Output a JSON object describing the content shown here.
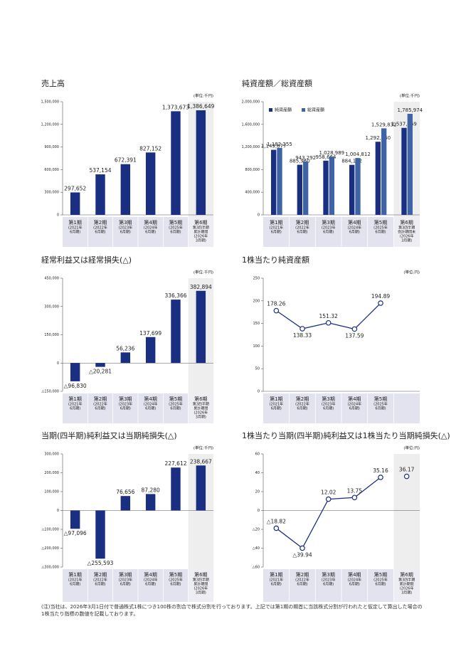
{
  "chart_data": [
    {
      "type": "bar",
      "title": "売上高",
      "unit": "(単位:千円)",
      "color": "#1b2f82",
      "highlight_last": true,
      "categories": [
        [
          "第1期",
          "(2021年",
          "6月期)"
        ],
        [
          "第2期",
          "(2022年",
          "6月期)"
        ],
        [
          "第3期",
          "(2023年",
          "6月期)"
        ],
        [
          "第4期",
          "(2024年",
          "6月期)"
        ],
        [
          "第5期",
          "(2025年",
          "6月期)"
        ],
        [
          "第6期",
          "第3四半期",
          "累計期間",
          "(2026年",
          "3月期)"
        ]
      ],
      "values": [
        297652,
        537154,
        672391,
        827152,
        1373673,
        1386649
      ],
      "value_labels": [
        "297,652",
        "537,154",
        "672,391",
        "827,152",
        "1,373,673",
        "1,386,649"
      ],
      "ylim": [
        0,
        1500000
      ],
      "yticks": [
        0,
        {
          "value": 300000,
          "label": "300,000"
        },
        {
          "value": 600000,
          "label": "600,000"
        },
        {
          "value": 900000,
          "label": "900,000"
        },
        {
          "value": 1200000,
          "label": "1,200,000"
        },
        {
          "value": 1500000,
          "label": "1,500,000"
        }
      ]
    },
    {
      "type": "bar",
      "title": "純資産額／総資産額",
      "unit": "(単位:千円)",
      "highlight_last": true,
      "legend": "upper left",
      "categories": [
        [
          "第1期",
          "(2021年",
          "6月期)"
        ],
        [
          "第2期",
          "(2022年",
          "6月期)"
        ],
        [
          "第3期",
          "(2023年",
          "6月期)"
        ],
        [
          "第4期",
          "(2024年",
          "6月期)"
        ],
        [
          "第5期",
          "(2025年",
          "6月期)"
        ],
        [
          "第6期",
          "第3四半期",
          "会計期間末",
          "(2026年",
          "3月期)"
        ]
      ],
      "series": [
        {
          "name": "純資産額",
          "color": "#1b2f82",
          "values": [
            1149677,
            885960,
            958664,
            884132,
            1292760,
            1537869
          ],
          "value_labels": [
            "1,149,677",
            "885,960",
            "958,664",
            "884,132",
            "1,292,760",
            "1,537,869"
          ]
        },
        {
          "name": "総資産額",
          "color": "#3e64a6",
          "values": [
            1182255,
            943292,
            1028989,
            1004812,
            1529832,
            1785974
          ],
          "value_labels": [
            "1,182,255",
            "943,292",
            "1,028,989",
            "1,004,812",
            "1,529,832",
            "1,785,974"
          ]
        }
      ],
      "ylim": [
        0,
        2000000
      ],
      "yticks": [
        0,
        {
          "value": 400000,
          "label": "400,000"
        },
        {
          "value": 800000,
          "label": "800,000"
        },
        {
          "value": 1200000,
          "label": "1,200,000"
        },
        {
          "value": 1600000,
          "label": "1,600,000"
        },
        {
          "value": 2000000,
          "label": "2,000,000"
        }
      ]
    },
    {
      "type": "bar",
      "title": "経常利益又は経常損失(△)",
      "unit": "(単位:千円)",
      "color": "#1b2f82",
      "highlight_last": true,
      "categories": [
        [
          "第1期",
          "(2021年",
          "6月期)"
        ],
        [
          "第2期",
          "(2022年",
          "6月期)"
        ],
        [
          "第3期",
          "(2023年",
          "6月期)"
        ],
        [
          "第4期",
          "(2024年",
          "6月期)"
        ],
        [
          "第5期",
          "(2025年",
          "6月期)"
        ],
        [
          "第6期",
          "第3四半期",
          "累計期間",
          "(2026年",
          "3月期)"
        ]
      ],
      "values": [
        -96830,
        -20281,
        56236,
        137699,
        336366,
        382894
      ],
      "value_labels": [
        "△96,830",
        "△20,281",
        "56,236",
        "137,699",
        "336,366",
        "382,894"
      ],
      "ylim": [
        -150000,
        450000
      ],
      "yticks": [
        {
          "value": -150000,
          "label": "△150,000"
        },
        0,
        {
          "value": 150000,
          "label": "150,000"
        },
        {
          "value": 300000,
          "label": "300,000"
        },
        {
          "value": 450000,
          "label": "450,000"
        }
      ]
    },
    {
      "type": "line",
      "title": "1株当たり純資産額",
      "unit": "(単位:円)",
      "color": "#1b2f82",
      "highlight_last": false,
      "categories": [
        [
          "第1期",
          "(2021年",
          "6月期)"
        ],
        [
          "第2期",
          "(2022年",
          "6月期)"
        ],
        [
          "第3期",
          "(2023年",
          "6月期)"
        ],
        [
          "第4期",
          "(2024年",
          "6月期)"
        ],
        [
          "第5期",
          "(2025年",
          "6月期)"
        ]
      ],
      "values": [
        178.26,
        138.33,
        151.32,
        137.59,
        194.89
      ],
      "ylim": [
        0,
        250
      ],
      "yticks": [
        0,
        50,
        100,
        150,
        200,
        250
      ]
    },
    {
      "type": "bar",
      "title": "当期(四半期)純利益又は当期純損失(△)",
      "unit": "(単位:千円)",
      "color": "#1b2f82",
      "highlight_last": true,
      "categories": [
        [
          "第1期",
          "(2021年",
          "6月期)"
        ],
        [
          "第2期",
          "(2022年",
          "6月期)"
        ],
        [
          "第3期",
          "(2023年",
          "6月期)"
        ],
        [
          "第4期",
          "(2024年",
          "6月期)"
        ],
        [
          "第5期",
          "(2025年",
          "6月期)"
        ],
        [
          "第6期",
          "第3四半期",
          "累計期間",
          "(2026年",
          "3月期)"
        ]
      ],
      "values": [
        -97096,
        -255593,
        76656,
        87280,
        227612,
        238667
      ],
      "value_labels": [
        "△97,096",
        "△255,593",
        "76,656",
        "87,280",
        "227,612",
        "238,667"
      ],
      "ylim": [
        -300000,
        300000
      ],
      "yticks": [
        {
          "value": -300000,
          "label": "△300,000"
        },
        {
          "value": -200000,
          "label": "△200,000"
        },
        {
          "value": -100000,
          "label": "△100,000"
        },
        0,
        {
          "value": 100000,
          "label": "100,000"
        },
        {
          "value": 200000,
          "label": "200,000"
        },
        {
          "value": 300000,
          "label": "300,000"
        }
      ]
    },
    {
      "type": "line",
      "title": "1株当たり当期(四半期)純利益又は1株当たり当期純損失(△)",
      "unit": "(単位:円)",
      "color": "#1b2f82",
      "highlight_last": true,
      "categories": [
        [
          "第1期",
          "(2021年",
          "6月期)"
        ],
        [
          "第2期",
          "(2022年",
          "6月期)"
        ],
        [
          "第3期",
          "(2023年",
          "6月期)"
        ],
        [
          "第4期",
          "(2024年",
          "6月期)"
        ],
        [
          "第5期",
          "(2025年",
          "6月期)"
        ],
        [
          "第6期",
          "第3四半期",
          "累計期間",
          "(2026年",
          "3月期)"
        ]
      ],
      "values": [
        -18.82,
        -39.94,
        12.02,
        13.75,
        35.16,
        36.17
      ],
      "value_labels": [
        "△18.82",
        "△39.94",
        "12.02",
        "13.75",
        "35.16",
        "36.17"
      ],
      "ylim": [
        -60,
        60
      ],
      "yticks": [
        {
          "value": -60,
          "label": "△60"
        },
        {
          "value": -40,
          "label": "△40"
        },
        {
          "value": -20,
          "label": "△20"
        },
        0,
        20,
        40,
        60
      ]
    }
  ],
  "note": "(注)当社は、2026年3月1日付で普通株式1株につき100株の割合で株式分割を行っております。上記では第1期の期首に当該株式分割が行われたと仮定して算出した場合の1株当たり指標の数値を記載しております。"
}
